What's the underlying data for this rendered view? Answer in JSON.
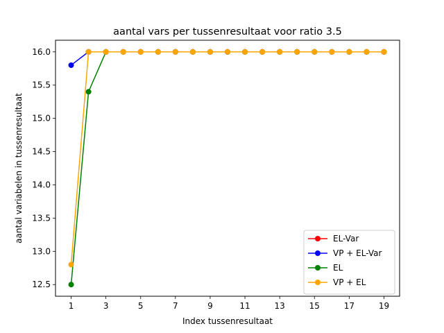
{
  "chart_data": {
    "type": "line",
    "title": "aantal vars per tussenresultaat voor ratio 3.5",
    "xlabel": "Index tussenresultaat",
    "ylabel": "aantal variabelen in tussenresultaat",
    "xlim": [
      0.1,
      19.9
    ],
    "ylim": [
      12.325,
      16.175
    ],
    "x_ticks": [
      1,
      3,
      5,
      7,
      9,
      11,
      13,
      15,
      17,
      19
    ],
    "x_tick_labels": [
      "1",
      "3",
      "5",
      "7",
      "9",
      "11",
      "13",
      "15",
      "17",
      "19"
    ],
    "y_ticks": [
      12.5,
      13.0,
      13.5,
      14.0,
      14.5,
      15.0,
      15.5,
      16.0
    ],
    "y_tick_labels": [
      "12.5",
      "13.0",
      "13.5",
      "14.0",
      "14.5",
      "15.0",
      "15.5",
      "16.0"
    ],
    "grid": false,
    "legend_position": "lower-right",
    "x": [
      1,
      2,
      3,
      4,
      5,
      6,
      7,
      8,
      9,
      10,
      11,
      12,
      13,
      14,
      15,
      16,
      17,
      18,
      19
    ],
    "series": [
      {
        "name": "EL-Var",
        "color": "#ff0000",
        "values": [
          null,
          16.0,
          16.0,
          16.0,
          16.0,
          16.0,
          16.0,
          16.0,
          16.0,
          16.0,
          16.0,
          16.0,
          16.0,
          16.0,
          16.0,
          16.0,
          16.0,
          16.0,
          16.0
        ]
      },
      {
        "name": "VP + EL-Var",
        "color": "#0000ff",
        "values": [
          15.8,
          16.0,
          16.0,
          16.0,
          16.0,
          16.0,
          16.0,
          16.0,
          16.0,
          16.0,
          16.0,
          16.0,
          16.0,
          16.0,
          16.0,
          16.0,
          16.0,
          16.0,
          16.0
        ]
      },
      {
        "name": "EL",
        "color": "#008000",
        "values": [
          12.5,
          15.4,
          16.0,
          16.0,
          16.0,
          16.0,
          16.0,
          16.0,
          16.0,
          16.0,
          16.0,
          16.0,
          16.0,
          16.0,
          16.0,
          16.0,
          16.0,
          16.0,
          16.0
        ]
      },
      {
        "name": "VP + EL",
        "color": "#ffa500",
        "values": [
          12.8,
          16.0,
          16.0,
          16.0,
          16.0,
          16.0,
          16.0,
          16.0,
          16.0,
          16.0,
          16.0,
          16.0,
          16.0,
          16.0,
          16.0,
          16.0,
          16.0,
          16.0,
          16.0
        ]
      }
    ]
  }
}
